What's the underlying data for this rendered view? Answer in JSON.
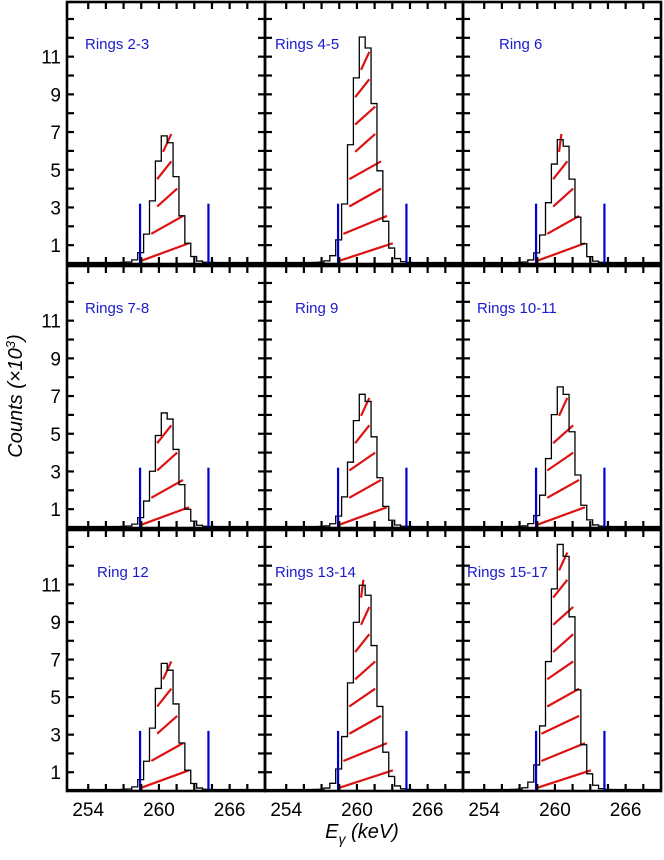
{
  "chart_data": {
    "type": "bar",
    "title": "",
    "xlabel": "E_γ (keV)",
    "ylabel": "Counts (×10^3)",
    "layout": {
      "rows": 3,
      "cols": 3,
      "shared_axes": true
    },
    "xlim": [
      252.2,
      269.0
    ],
    "ylim": [
      0,
      13.9
    ],
    "xticks_labeled": [
      254,
      260,
      266
    ],
    "xticks_minor_step": 1.5,
    "yticks_labeled": [
      1,
      3,
      5,
      7,
      9,
      11
    ],
    "yticks_minor_step": 1,
    "grid": false,
    "integration_window_keV": [
      258.4,
      264.2
    ],
    "colors": {
      "histogram": "#000000",
      "hatch": "#dd1111",
      "window": "#0000cc",
      "label": "#1a1acc"
    },
    "bin_width_keV": 0.5,
    "panels": [
      {
        "label": "Rings 2-3",
        "center": 260.6,
        "peak": 6.8,
        "sigma": 0.95
      },
      {
        "label": "Rings 4-5",
        "center": 260.6,
        "peak": 12.1,
        "sigma": 1.0
      },
      {
        "label": "Ring 6",
        "center": 260.6,
        "peak": 6.6,
        "sigma": 0.95
      },
      {
        "label": "Rings 7-8",
        "center": 260.6,
        "peak": 6.1,
        "sigma": 0.95
      },
      {
        "label": "Ring 9",
        "center": 260.6,
        "peak": 7.1,
        "sigma": 0.95
      },
      {
        "label": "Rings 10-11",
        "center": 260.6,
        "peak": 7.5,
        "sigma": 0.95
      },
      {
        "label": "Ring 12",
        "center": 260.6,
        "peak": 6.8,
        "sigma": 0.95
      },
      {
        "label": "Rings 13-14",
        "center": 260.6,
        "peak": 11.0,
        "sigma": 1.0
      },
      {
        "label": "Rings 15-17",
        "center": 260.6,
        "peak": 13.2,
        "sigma": 1.0
      }
    ]
  }
}
